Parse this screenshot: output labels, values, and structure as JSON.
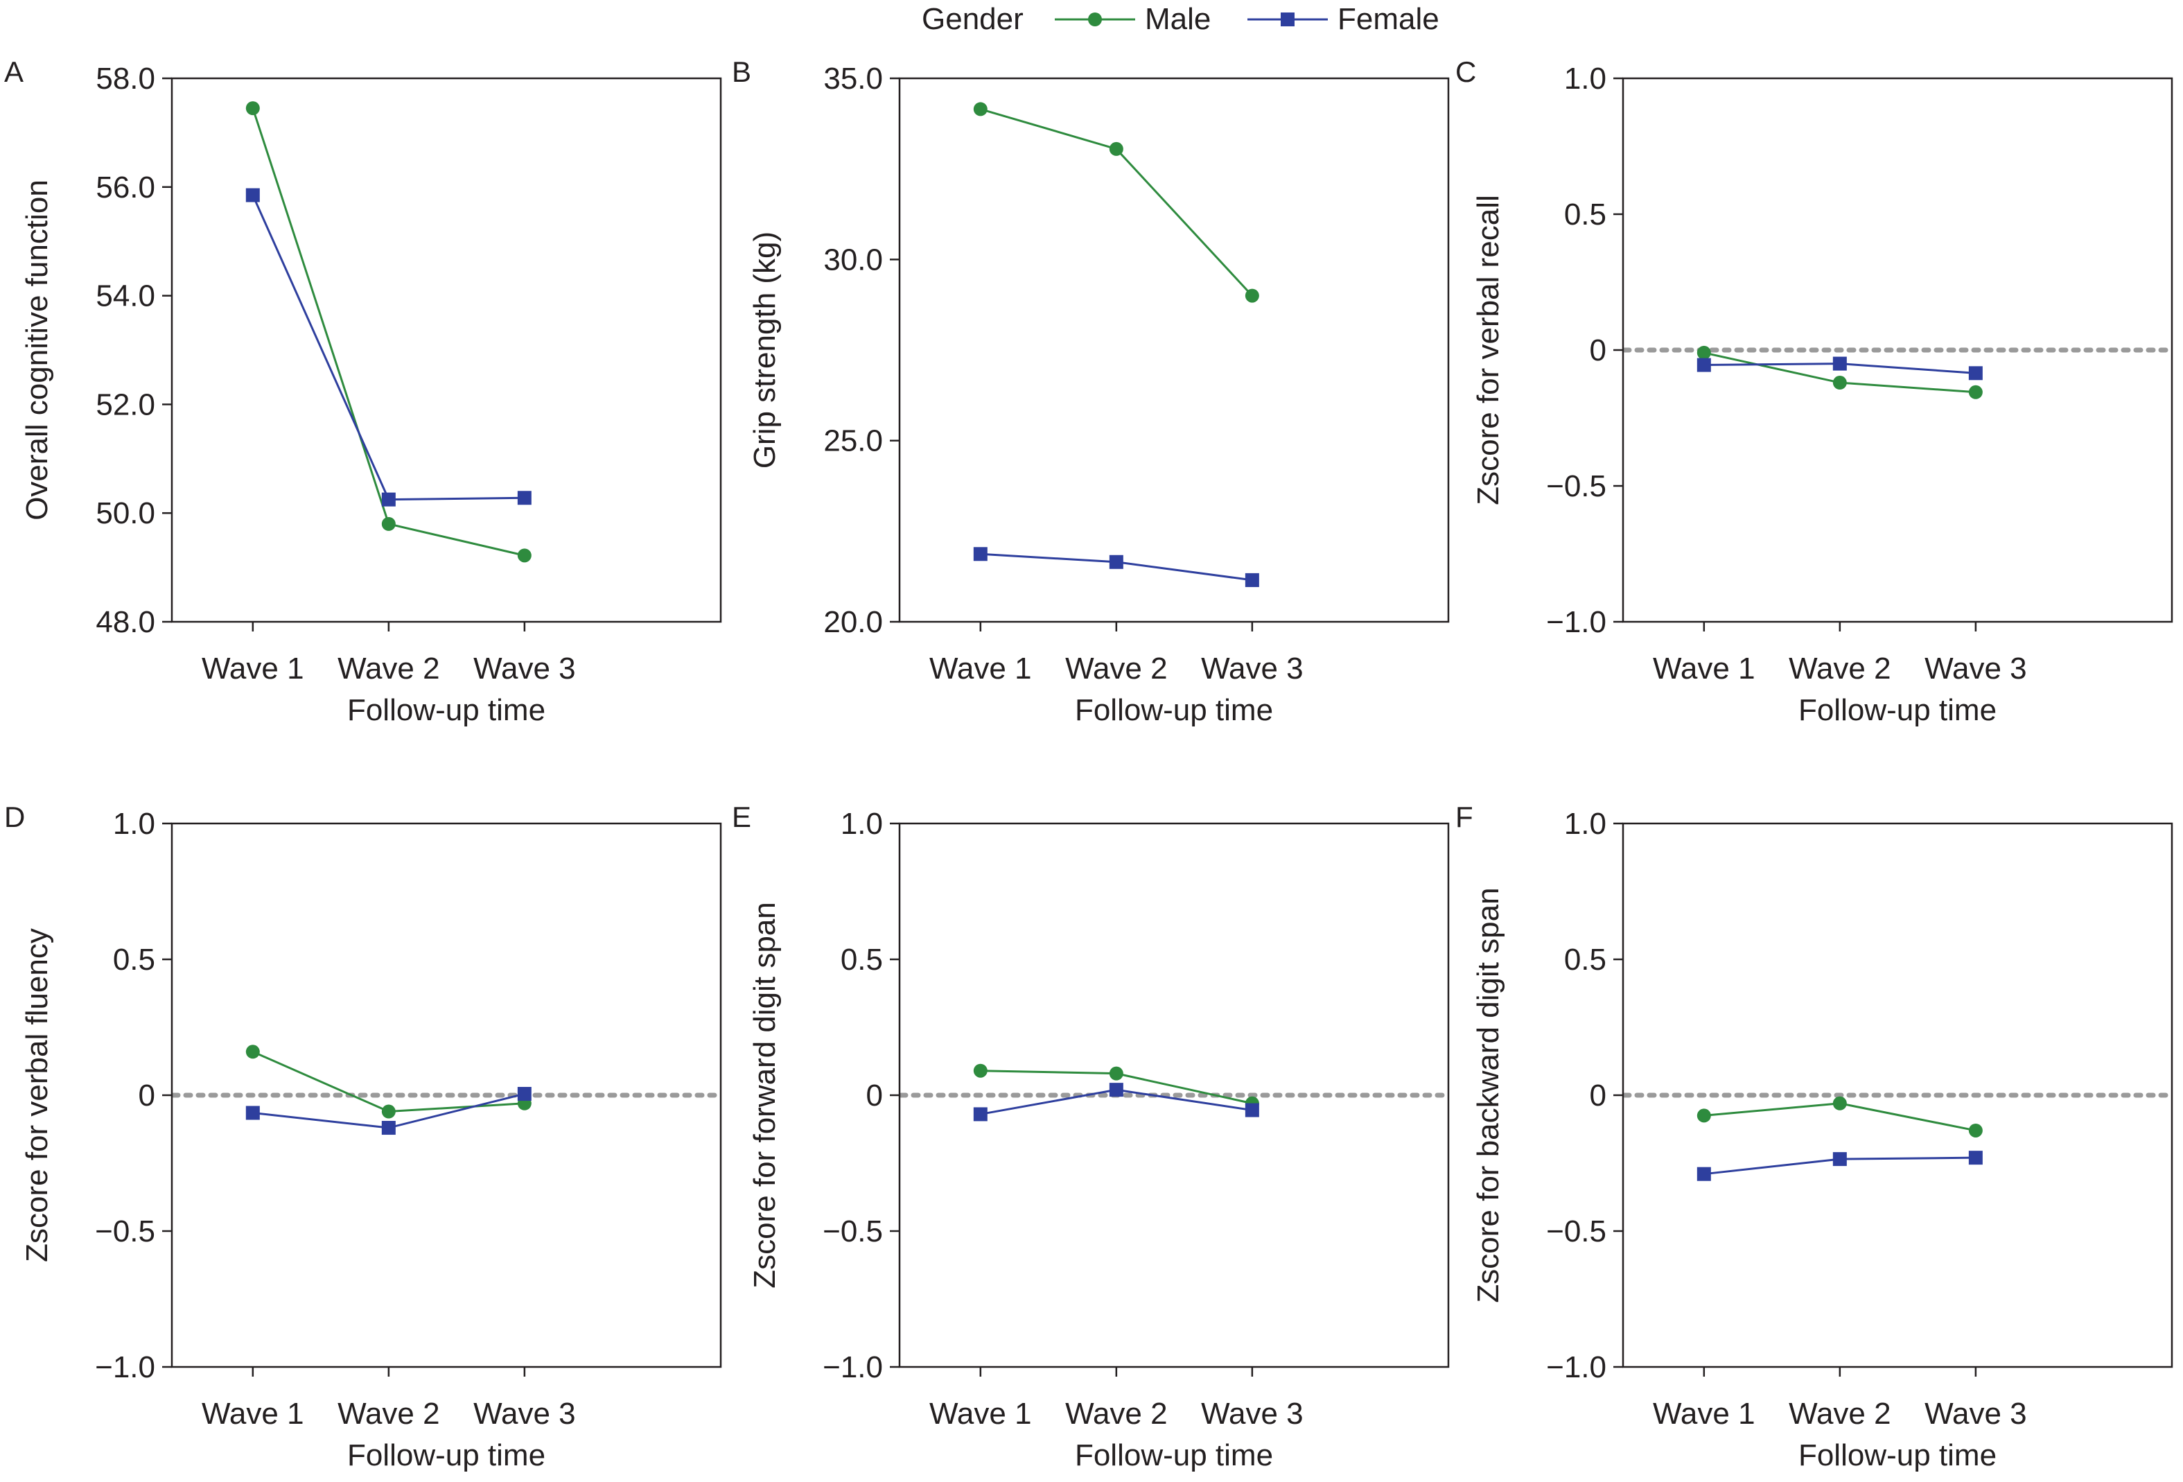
{
  "legend": {
    "title": "Gender",
    "items": [
      {
        "label": "Male",
        "color": "#2e8b3e",
        "marker": "circle"
      },
      {
        "label": "Female",
        "color": "#2e3f9e",
        "marker": "square"
      }
    ]
  },
  "chart_data": [
    {
      "panel": "A",
      "type": "line",
      "x": [
        "Wave 1",
        "Wave 2",
        "Wave 3"
      ],
      "xlabel": "Follow-up time",
      "ylabel": "Overall cognitive function",
      "ylim": [
        48.0,
        58.0
      ],
      "yticks": [
        "48.0",
        "50.0",
        "52.0",
        "54.0",
        "56.0",
        "58.0"
      ],
      "reference_line": null,
      "series": [
        {
          "name": "Male",
          "values": [
            57.45,
            49.8,
            49.22
          ]
        },
        {
          "name": "Female",
          "values": [
            55.85,
            50.25,
            50.28
          ]
        }
      ]
    },
    {
      "panel": "B",
      "type": "line",
      "x": [
        "Wave 1",
        "Wave 2",
        "Wave 3"
      ],
      "xlabel": "Follow-up time",
      "ylabel": "Grip strength (kg)",
      "ylim": [
        20.0,
        35.0
      ],
      "yticks": [
        "20.0",
        "25.0",
        "30.0",
        "35.0"
      ],
      "reference_line": null,
      "series": [
        {
          "name": "Male",
          "values": [
            34.15,
            33.05,
            29.0
          ]
        },
        {
          "name": "Female",
          "values": [
            21.87,
            21.65,
            21.15
          ]
        }
      ]
    },
    {
      "panel": "C",
      "type": "line",
      "x": [
        "Wave 1",
        "Wave 2",
        "Wave 3"
      ],
      "xlabel": "Follow-up time",
      "ylabel": "Zscore for verbal recall",
      "ylim": [
        -1.0,
        1.0
      ],
      "yticks": [
        "−1.0",
        "−0.5",
        "0",
        "0.5",
        "1.0"
      ],
      "reference_line": 0,
      "series": [
        {
          "name": "Male",
          "values": [
            -0.01,
            -0.12,
            -0.155
          ]
        },
        {
          "name": "Female",
          "values": [
            -0.055,
            -0.05,
            -0.085
          ]
        }
      ]
    },
    {
      "panel": "D",
      "type": "line",
      "x": [
        "Wave 1",
        "Wave 2",
        "Wave 3"
      ],
      "xlabel": "Follow-up time",
      "ylabel": "Zscore for verbal fluency",
      "ylim": [
        -1.0,
        1.0
      ],
      "yticks": [
        "−1.0",
        "−0.5",
        "0",
        "0.5",
        "1.0"
      ],
      "reference_line": 0,
      "series": [
        {
          "name": "Male",
          "values": [
            0.16,
            -0.06,
            -0.03
          ]
        },
        {
          "name": "Female",
          "values": [
            -0.065,
            -0.12,
            0.005
          ]
        }
      ]
    },
    {
      "panel": "E",
      "type": "line",
      "x": [
        "Wave 1",
        "Wave 2",
        "Wave 3"
      ],
      "xlabel": "Follow-up time",
      "ylabel": "Zscore for forward digit span",
      "ylim": [
        -1.0,
        1.0
      ],
      "yticks": [
        "−1.0",
        "−0.5",
        "0",
        "0.5",
        "1.0"
      ],
      "reference_line": 0,
      "series": [
        {
          "name": "Male",
          "values": [
            0.09,
            0.08,
            -0.03
          ]
        },
        {
          "name": "Female",
          "values": [
            -0.07,
            0.02,
            -0.055
          ]
        }
      ]
    },
    {
      "panel": "F",
      "type": "line",
      "x": [
        "Wave 1",
        "Wave 2",
        "Wave 3"
      ],
      "xlabel": "Follow-up time",
      "ylabel": "Zscore for backward digit span",
      "ylim": [
        -1.0,
        1.0
      ],
      "yticks": [
        "−1.0",
        "−0.5",
        "0",
        "0.5",
        "1.0"
      ],
      "reference_line": 0,
      "series": [
        {
          "name": "Male",
          "values": [
            -0.075,
            -0.03,
            -0.13
          ]
        },
        {
          "name": "Female",
          "values": [
            -0.29,
            -0.235,
            -0.23
          ]
        }
      ]
    }
  ]
}
